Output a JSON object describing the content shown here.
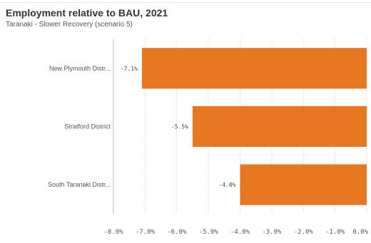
{
  "chart_data": {
    "type": "bar",
    "orientation": "horizontal",
    "title": "Employment relative to BAU, 2021",
    "subtitle": "Taranaki - Slower Recovery (scenario 5)",
    "categories": [
      "New Plymouth Distr...",
      "Stratford District",
      "South Taranaki Distr..."
    ],
    "values": [
      -7.1,
      -5.5,
      -4.0
    ],
    "data_labels": [
      "-7.1%",
      "-5.5%",
      "-4.0%"
    ],
    "xlim": [
      -8.0,
      0.0
    ],
    "xticks": [
      -8.0,
      -7.0,
      -6.0,
      -5.0,
      -4.0,
      -3.0,
      -2.0,
      -1.0,
      0.0
    ],
    "xtick_labels": [
      "-8.0%",
      "-7.0%",
      "-6.0%",
      "-5.0%",
      "-4.0%",
      "-3.0%",
      "-2.0%",
      "-1.0%",
      "0.0%"
    ],
    "xlabel": "",
    "ylabel": "",
    "grid": "vertical dotted",
    "bar_color": "#E87722",
    "legend": "none"
  }
}
